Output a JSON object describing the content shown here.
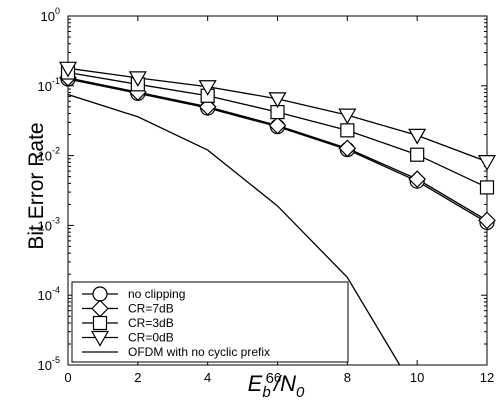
{
  "chart_data": {
    "type": "line",
    "xlabel": "E_b^6/N_0",
    "xlabel_parts": {
      "E": "E",
      "b": "b",
      "six": "6",
      "slash": "/N",
      "zero": "0"
    },
    "ylabel": "Bit Error Rate",
    "xlim": [
      0,
      12
    ],
    "ylim": [
      1e-05,
      1
    ],
    "yscale": "log",
    "grid": false,
    "legend_position": "bottom-left",
    "x_ticks": [
      "0",
      "2",
      "4",
      "6",
      "8",
      "10",
      "12"
    ],
    "y_ticks": [
      {
        "base": "10",
        "exp": "0",
        "value": 1
      },
      {
        "base": "10",
        "exp": "-1",
        "value": 0.1
      },
      {
        "base": "10",
        "exp": "-2",
        "value": 0.01
      },
      {
        "base": "10",
        "exp": "-3",
        "value": 0.001
      },
      {
        "base": "10",
        "exp": "-4",
        "value": 0.0001
      },
      {
        "base": "10",
        "exp": "-5",
        "value": 1e-05
      }
    ],
    "series": [
      {
        "name": "no clipping",
        "marker": "circle",
        "x": [
          0,
          2,
          4,
          6,
          8,
          10,
          12
        ],
        "values": [
          0.125,
          0.078,
          0.048,
          0.026,
          0.0122,
          0.0043,
          0.0011
        ]
      },
      {
        "name": "CR=7dB",
        "marker": "diamond",
        "x": [
          0,
          2,
          4,
          6,
          8,
          10,
          12
        ],
        "values": [
          0.13,
          0.081,
          0.05,
          0.027,
          0.0127,
          0.0046,
          0.00118
        ]
      },
      {
        "name": "CR=3dB",
        "marker": "square",
        "x": [
          0,
          2,
          4,
          6,
          8,
          10,
          12
        ],
        "values": [
          0.155,
          0.105,
          0.072,
          0.042,
          0.023,
          0.0103,
          0.0035
        ]
      },
      {
        "name": "CR=0dB",
        "marker": "triangle-down",
        "x": [
          0,
          2,
          4,
          6,
          8,
          10,
          12
        ],
        "values": [
          0.178,
          0.13,
          0.097,
          0.065,
          0.038,
          0.0195,
          0.0082
        ]
      },
      {
        "name": "OFDM with no cyclic prefix",
        "marker": "none",
        "x": [
          0,
          2,
          4,
          6,
          8,
          9.5
        ],
        "values": [
          0.075,
          0.036,
          0.012,
          0.0019,
          0.00018,
          1e-05
        ]
      }
    ]
  }
}
